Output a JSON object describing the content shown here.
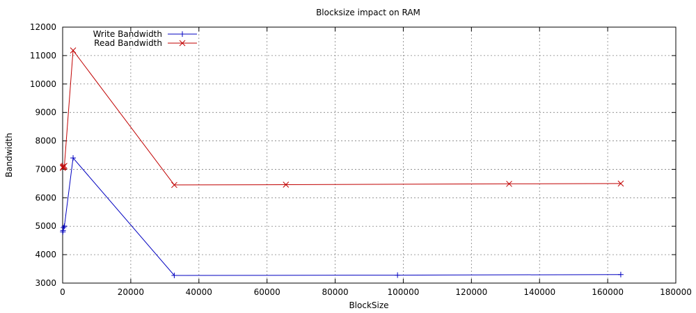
{
  "chart_data": {
    "type": "line",
    "title": "Blocksize impact on RAM",
    "xlabel": "BlockSize",
    "ylabel": "Bandwidth",
    "xlim": [
      0,
      180000
    ],
    "ylim": [
      3000,
      12000
    ],
    "xticks": [
      0,
      20000,
      40000,
      60000,
      80000,
      100000,
      120000,
      140000,
      160000,
      180000
    ],
    "yticks": [
      3000,
      4000,
      5000,
      6000,
      7000,
      8000,
      9000,
      10000,
      11000,
      12000
    ],
    "grid": true,
    "legend_position": "top-left",
    "series": [
      {
        "name": "Write Bandwidth",
        "color": "#0000c0",
        "marker": "plus",
        "x": [
          64,
          128,
          256,
          512,
          3072,
          32768,
          98304,
          163840
        ],
        "y": [
          4800,
          4850,
          4950,
          5000,
          7400,
          3270,
          3280,
          3300
        ]
      },
      {
        "name": "Read Bandwidth",
        "color": "#c00000",
        "marker": "cross",
        "x": [
          64,
          128,
          256,
          512,
          3072,
          32768,
          65536,
          131072,
          163840
        ],
        "y": [
          7050,
          7080,
          7100,
          7120,
          11180,
          6450,
          6460,
          6490,
          6500
        ]
      }
    ]
  }
}
